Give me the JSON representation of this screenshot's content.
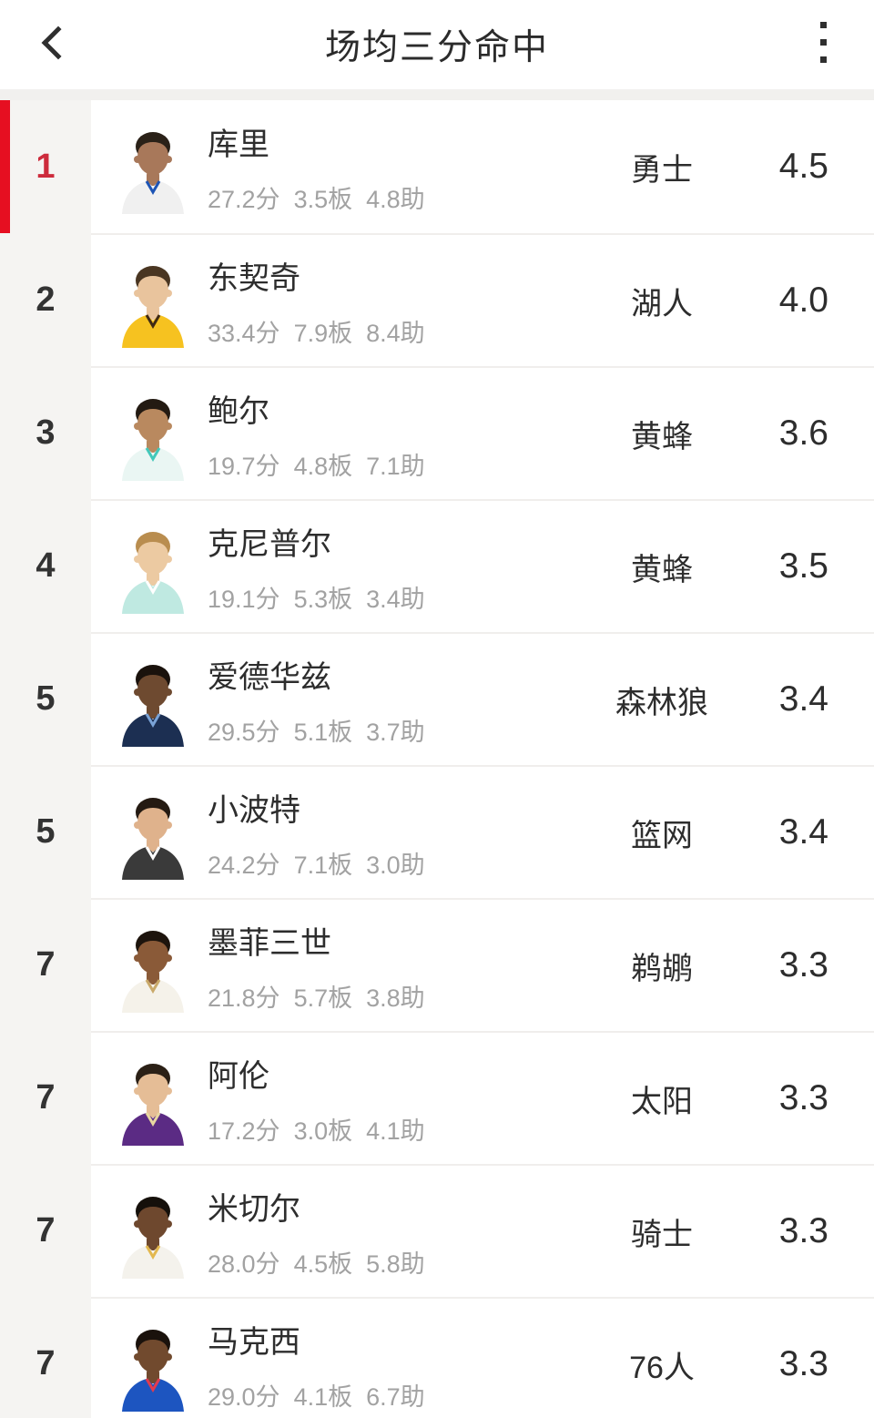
{
  "header": {
    "title": "场均三分命中",
    "back_icon": "chevron-left",
    "menu_icon": "kebab-vertical"
  },
  "colors": {
    "accent_red": "#e60f21",
    "rank_red": "#cd2b3c"
  },
  "list": {
    "rows": [
      {
        "rank": "1",
        "highlight": true,
        "name": "库里",
        "points": "27.2分",
        "rebounds": "3.5板",
        "assists": "4.8助",
        "team": "勇士",
        "value": "4.5",
        "avatar": {
          "skin": "#a8785a",
          "hair": "#2a2118",
          "jersey": "#f0f0f0",
          "trim": "#1d54b5"
        }
      },
      {
        "rank": "2",
        "highlight": false,
        "name": "东契奇",
        "points": "33.4分",
        "rebounds": "7.9板",
        "assists": "8.4助",
        "team": "湖人",
        "value": "4.0",
        "avatar": {
          "skin": "#e9c49d",
          "hair": "#4a3622",
          "jersey": "#f6c220",
          "trim": "#3f2a14"
        }
      },
      {
        "rank": "3",
        "highlight": false,
        "name": "鲍尔",
        "points": "19.7分",
        "rebounds": "4.8板",
        "assists": "7.1助",
        "team": "黄蜂",
        "value": "3.6",
        "avatar": {
          "skin": "#b9895f",
          "hair": "#231a12",
          "jersey": "#eaf6f3",
          "trim": "#42c8ba"
        }
      },
      {
        "rank": "4",
        "highlight": false,
        "name": "克尼普尔",
        "points": "19.1分",
        "rebounds": "5.3板",
        "assists": "3.4助",
        "team": "黄蜂",
        "value": "3.5",
        "avatar": {
          "skin": "#eccaa2",
          "hair": "#b98d4f",
          "jersey": "#bfe9e1",
          "trim": "#ffffff"
        }
      },
      {
        "rank": "5",
        "highlight": false,
        "name": "爱德华兹",
        "points": "29.5分",
        "rebounds": "5.1板",
        "assists": "3.7助",
        "team": "森林狼",
        "value": "3.4",
        "avatar": {
          "skin": "#6e4a30",
          "hair": "#1a120c",
          "jersey": "#1c2f52",
          "trim": "#7aa3d6"
        }
      },
      {
        "rank": "5",
        "highlight": false,
        "name": "小波特",
        "points": "24.2分",
        "rebounds": "7.1板",
        "assists": "3.0助",
        "team": "篮网",
        "value": "3.4",
        "avatar": {
          "skin": "#dfb28c",
          "hair": "#241a12",
          "jersey": "#3a3a3a",
          "trim": "#ffffff"
        }
      },
      {
        "rank": "7",
        "highlight": false,
        "name": "墨菲三世",
        "points": "21.8分",
        "rebounds": "5.7板",
        "assists": "3.8助",
        "team": "鹈鹕",
        "value": "3.3",
        "avatar": {
          "skin": "#8a5a38",
          "hair": "#1d140d",
          "jersey": "#f5f2ea",
          "trim": "#c9a96a"
        }
      },
      {
        "rank": "7",
        "highlight": false,
        "name": "阿伦",
        "points": "17.2分",
        "rebounds": "3.0板",
        "assists": "4.1助",
        "team": "太阳",
        "value": "3.3",
        "avatar": {
          "skin": "#e5bd96",
          "hair": "#2b2016",
          "jersey": "#5b2b84",
          "trim": "#e8d7a0"
        }
      },
      {
        "rank": "7",
        "highlight": false,
        "name": "米切尔",
        "points": "28.0分",
        "rebounds": "4.5板",
        "assists": "5.8助",
        "team": "骑士",
        "value": "3.3",
        "avatar": {
          "skin": "#6e482e",
          "hair": "#15100b",
          "jersey": "#f4f2ec",
          "trim": "#e3b84f"
        }
      },
      {
        "rank": "7",
        "highlight": false,
        "name": "马克西",
        "points": "29.0分",
        "rebounds": "4.1板",
        "assists": "6.7助",
        "team": "76人",
        "value": "3.3",
        "avatar": {
          "skin": "#714a2e",
          "hair": "#1a120c",
          "jersey": "#1d55c0",
          "trim": "#e23b4e"
        }
      }
    ]
  }
}
